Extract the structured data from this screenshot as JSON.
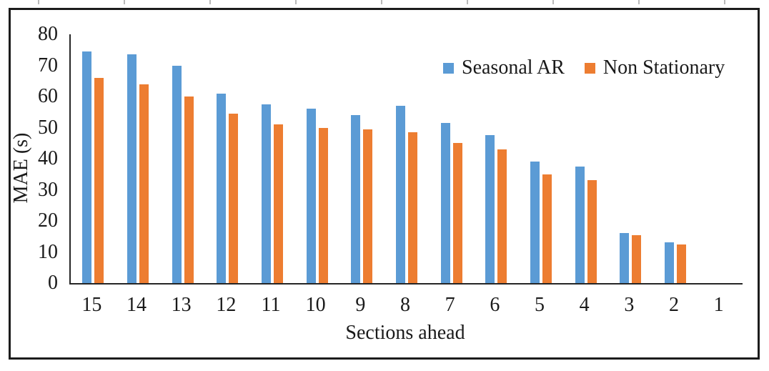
{
  "figure": {
    "type": "embedded-document-figure",
    "border_color": "#1c1c1c",
    "background": "#ffffff"
  },
  "chart_data": {
    "type": "bar",
    "title": "",
    "xlabel": "Sections ahead",
    "ylabel": "MAE (s)",
    "categories": [
      "15",
      "14",
      "13",
      "12",
      "11",
      "10",
      "9",
      "8",
      "7",
      "6",
      "5",
      "4",
      "3",
      "2",
      "1"
    ],
    "series": [
      {
        "name": "Seasonal AR",
        "color": "#5B9BD5",
        "values": [
          74.5,
          73.5,
          70,
          61,
          57.5,
          56,
          54,
          57,
          51.5,
          47.5,
          39,
          37.5,
          16,
          13,
          0
        ]
      },
      {
        "name": "Non Stationary",
        "color": "#ED7D31",
        "values": [
          66,
          64,
          60,
          54.5,
          51,
          50,
          49.5,
          48.5,
          45,
          43,
          35,
          33,
          15.5,
          12.5,
          0
        ]
      }
    ],
    "ylim": [
      0,
      80
    ],
    "y_ticks": [
      80,
      70,
      60,
      50,
      40,
      30,
      20,
      10,
      0
    ],
    "grid": false,
    "legend_position": "top-right-inside"
  }
}
